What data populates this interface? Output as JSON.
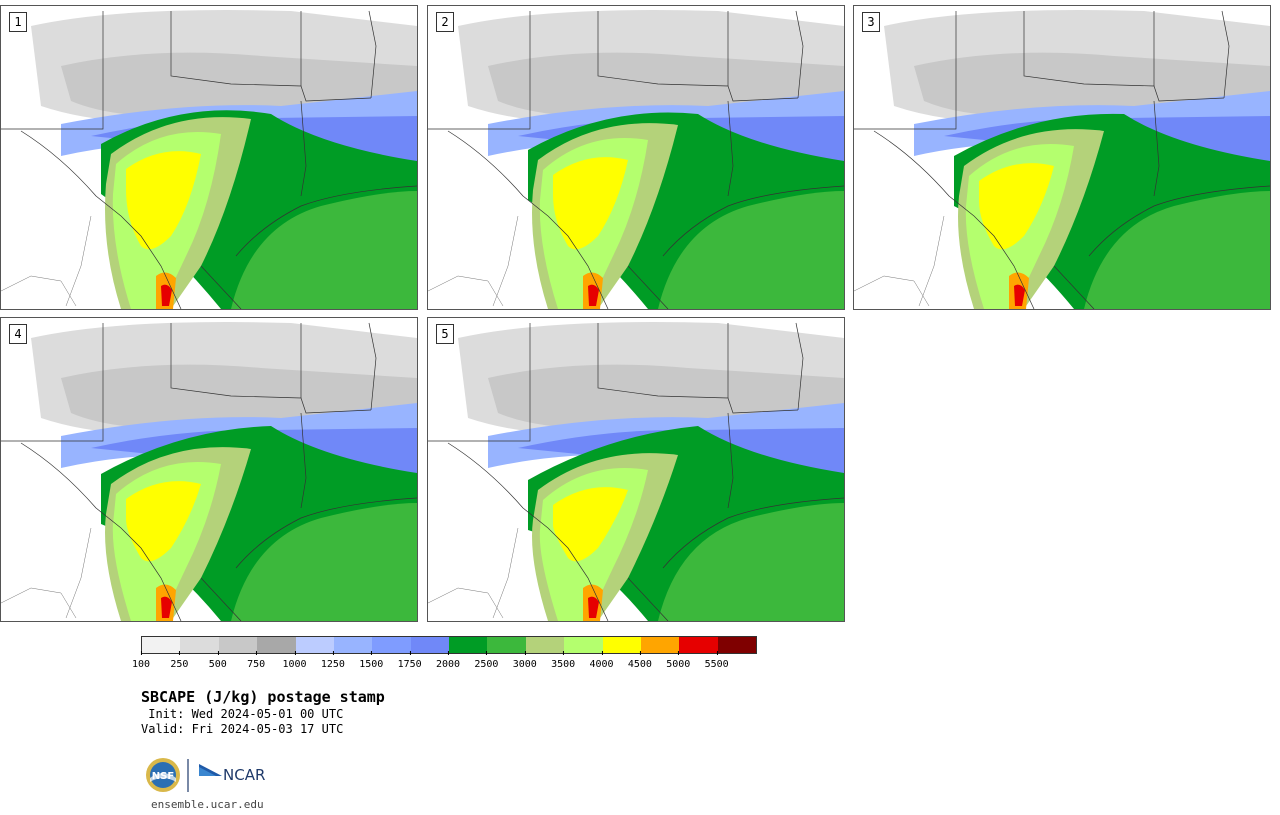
{
  "product": {
    "title": "SBCAPE (J/kg) postage stamp",
    "init": " Init: Wed 2024-05-01 00 UTC",
    "valid": "Valid: Fri 2024-05-03 17 UTC"
  },
  "panels": [
    {
      "label": "1",
      "variant": 1
    },
    {
      "label": "2",
      "variant": 2
    },
    {
      "label": "3",
      "variant": 3
    },
    {
      "label": "4",
      "variant": 4
    },
    {
      "label": "5",
      "variant": 5
    }
  ],
  "colorbar": {
    "colors": [
      "#f2f2f2",
      "#dcdcdc",
      "#c8c8c8",
      "#a8a8a8",
      "#bcccff",
      "#98b4ff",
      "#7f9cff",
      "#7088f8",
      "#009c25",
      "#3cb83c",
      "#b4d27a",
      "#b4ff6e",
      "#ffff00",
      "#ffa500",
      "#e60000",
      "#7f0000"
    ],
    "ticks": [
      "100",
      "250",
      "500",
      "750",
      "1000",
      "1250",
      "1500",
      "1750",
      "2000",
      "2500",
      "3000",
      "3500",
      "4000",
      "4500",
      "5000",
      "5500"
    ]
  },
  "branding": {
    "nsf_logo_text": "NSF",
    "ncar_logo_text": "NCAR",
    "site": "ensemble.ucar.edu"
  }
}
